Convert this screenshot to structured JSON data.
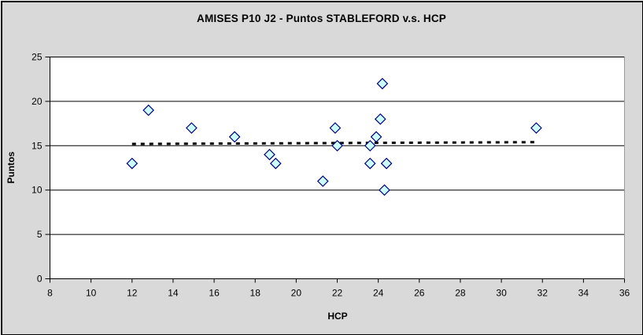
{
  "window": {
    "background": "#d9d9d9",
    "border_color": "#000000",
    "plot_background": "#ffffff",
    "gridline_color": "#000000"
  },
  "chart_data": {
    "type": "scatter",
    "title": "AMISES P10 J2 - Puntos STABLEFORD v.s. HCP",
    "xlabel": "HCP",
    "ylabel": "Puntos",
    "xlim": [
      8,
      36
    ],
    "ylim": [
      0,
      25
    ],
    "x_ticks": [
      8,
      10,
      12,
      14,
      16,
      18,
      20,
      22,
      24,
      26,
      28,
      30,
      32,
      34,
      36
    ],
    "y_ticks": [
      0,
      5,
      10,
      15,
      20,
      25
    ],
    "grid": "horizontal-only",
    "legend_position": "none",
    "series": [
      {
        "name": "Puntos STABLEFORD",
        "marker": "diamond",
        "marker_fill": "#ccffff",
        "marker_stroke": "#000080",
        "points": [
          [
            12.0,
            13
          ],
          [
            12.8,
            19
          ],
          [
            14.9,
            17
          ],
          [
            17.0,
            16
          ],
          [
            18.7,
            14
          ],
          [
            19.0,
            13
          ],
          [
            21.3,
            11
          ],
          [
            21.9,
            17
          ],
          [
            22.0,
            15
          ],
          [
            23.6,
            15
          ],
          [
            23.6,
            13
          ],
          [
            23.9,
            16
          ],
          [
            24.1,
            18
          ],
          [
            24.2,
            22
          ],
          [
            24.3,
            10
          ],
          [
            24.4,
            13
          ],
          [
            31.7,
            17
          ]
        ]
      }
    ],
    "trendline": {
      "style": "dotted",
      "color": "#000000",
      "x1": 12.0,
      "y1": 15.2,
      "x2": 31.6,
      "y2": 15.4
    }
  }
}
